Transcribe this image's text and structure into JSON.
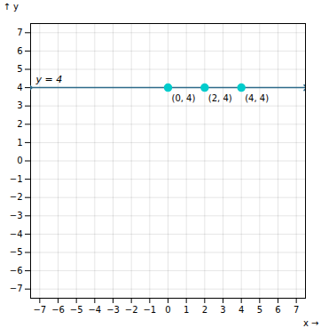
{
  "chart_data": {
    "type": "scatter",
    "x": [
      0,
      2,
      4
    ],
    "values": [
      4,
      4,
      4
    ],
    "color": "#00CCCC",
    "point_labels": [
      "(0, 4)",
      "(2, 4)",
      "(4, 4)"
    ],
    "line": {
      "y": 4,
      "color": "#2E6B8A",
      "label": "y = 4"
    },
    "xlabel": "x",
    "ylabel": "y",
    "xlim": [
      -7.5,
      7.5
    ],
    "ylim": [
      -7.5,
      7.5
    ],
    "xticks": [
      -7,
      -6,
      -5,
      -4,
      -3,
      -2,
      -1,
      0,
      1,
      2,
      3,
      4,
      5,
      6,
      7
    ],
    "yticks": [
      -7,
      -6,
      -5,
      -4,
      -3,
      -2,
      -1,
      0,
      1,
      2,
      3,
      4,
      5,
      6,
      7
    ],
    "grid": true
  }
}
